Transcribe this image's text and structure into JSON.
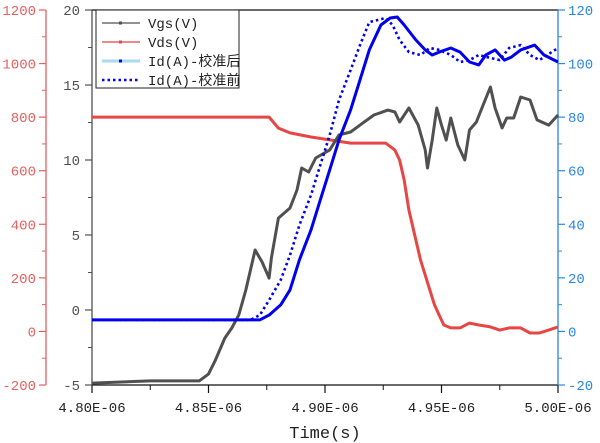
{
  "chart_data": {
    "type": "line",
    "title": "",
    "xlabel": "Time(s)",
    "xlim": [
      4.8e-06,
      5e-06
    ],
    "x_ticks": [
      "4.80E-06",
      "4.85E-06",
      "4.90E-06",
      "4.95E-06",
      "5.00E-06"
    ],
    "x_tick_values": [
      4.8e-06,
      4.85e-06,
      4.9e-06,
      4.95e-06,
      5e-06
    ],
    "grid": false,
    "legend_position": "top-left",
    "axes": {
      "vgs": {
        "side": "left-inner",
        "ylim": [
          -5,
          20
        ],
        "ticks": [
          "-5",
          "0",
          "5",
          "10",
          "15",
          "20"
        ],
        "tick_values": [
          -5,
          0,
          5,
          10,
          15,
          20
        ],
        "color": "#505050"
      },
      "vds": {
        "side": "left-outer",
        "ylim": [
          -200,
          1200
        ],
        "ticks": [
          "-200",
          "0",
          "200",
          "400",
          "600",
          "800",
          "1000",
          "1200"
        ],
        "tick_values": [
          -200,
          0,
          200,
          400,
          600,
          800,
          1000,
          1200
        ],
        "color": "#e8605f"
      },
      "id": {
        "side": "right",
        "ylim": [
          -20,
          120
        ],
        "ticks": [
          "-20",
          "0",
          "20",
          "40",
          "60",
          "80",
          "100",
          "120"
        ],
        "tick_values": [
          -20,
          0,
          20,
          40,
          60,
          80,
          100,
          120
        ],
        "color": "#2a86e8"
      }
    },
    "series": [
      {
        "name": "Vgs(V)",
        "axis": "vgs",
        "color": "#505050",
        "style": "line-square-markers",
        "x": [
          4.8e-06,
          4.825e-06,
          4.846e-06,
          4.85e-06,
          4.853e-06,
          4.857e-06,
          4.86e-06,
          4.863e-06,
          4.866e-06,
          4.87e-06,
          4.873e-06,
          4.876e-06,
          4.877e-06,
          4.88e-06,
          4.885e-06,
          4.888e-06,
          4.89e-06,
          4.893e-06,
          4.896e-06,
          4.902e-06,
          4.906e-06,
          4.911e-06,
          4.915e-06,
          4.921e-06,
          4.927e-06,
          4.93e-06,
          4.932e-06,
          4.936e-06,
          4.94e-06,
          4.943e-06,
          4.944e-06,
          4.946e-06,
          4.948e-06,
          4.95e-06,
          4.952e-06,
          4.954e-06,
          4.957e-06,
          4.96e-06,
          4.962e-06,
          4.965e-06,
          4.967e-06,
          4.971e-06,
          4.973e-06,
          4.976e-06,
          4.978e-06,
          4.981e-06,
          4.984e-06,
          4.988e-06,
          4.991e-06,
          4.996e-06,
          5e-06
        ],
        "y": [
          -4.87,
          -4.73,
          -4.73,
          -4.27,
          -3.33,
          -1.87,
          -1.2,
          -0.33,
          1.33,
          4.0,
          3.2,
          2.13,
          3.47,
          6.13,
          6.8,
          8.0,
          9.47,
          9.2,
          10.13,
          10.67,
          11.67,
          11.87,
          12.33,
          13.0,
          13.33,
          13.2,
          12.53,
          13.47,
          12.33,
          10.67,
          9.47,
          11.33,
          13.47,
          12.33,
          11.33,
          12.8,
          11.0,
          10.0,
          12.0,
          12.53,
          13.33,
          14.87,
          13.47,
          12.13,
          12.8,
          12.8,
          14.2,
          14.0,
          12.67,
          12.33,
          13.0
        ]
      },
      {
        "name": "Vds(V)",
        "axis": "vds",
        "color": "#e84545",
        "style": "line-square-markers",
        "x": [
          4.8e-06,
          4.876e-06,
          4.88e-06,
          4.885e-06,
          4.894e-06,
          4.902e-06,
          4.911e-06,
          4.926e-06,
          4.93e-06,
          4.932e-06,
          4.934e-06,
          4.936e-06,
          4.939e-06,
          4.941e-06,
          4.943e-06,
          4.945e-06,
          4.947e-06,
          4.949e-06,
          4.951e-06,
          4.954e-06,
          4.958e-06,
          4.962e-06,
          4.966e-06,
          4.971e-06,
          4.975e-06,
          4.979e-06,
          4.984e-06,
          4.988e-06,
          4.992e-06,
          4.996e-06,
          5e-06
        ],
        "y": [
          800,
          800,
          759,
          741,
          726,
          715,
          703,
          703,
          677,
          640,
          565,
          453,
          341,
          267,
          211,
          155,
          99,
          61,
          24,
          13,
          13,
          31,
          24,
          17,
          5,
          13,
          13,
          -6,
          -6,
          5,
          17
        ]
      },
      {
        "name": "Id(A)-校准后",
        "axis": "id",
        "color": "#0000ee",
        "legend_line_color": "#a8daf2",
        "style": "line-square-markers",
        "x": [
          4.8e-06,
          4.872e-06,
          4.876e-06,
          4.881e-06,
          4.885e-06,
          4.889e-06,
          4.894e-06,
          4.898e-06,
          4.902e-06,
          4.906e-06,
          4.911e-06,
          4.915e-06,
          4.919e-06,
          4.924e-06,
          4.928e-06,
          4.931e-06,
          4.934e-06,
          4.939e-06,
          4.943e-06,
          4.946e-06,
          4.949e-06,
          4.954e-06,
          4.958e-06,
          4.962e-06,
          4.966e-06,
          4.969e-06,
          4.973e-06,
          4.977e-06,
          4.98e-06,
          4.984e-06,
          4.99e-06,
          4.994e-06,
          5e-06
        ],
        "y": [
          4.3,
          4.3,
          6.1,
          9.9,
          15.5,
          26.7,
          37.9,
          49.1,
          60.3,
          71.5,
          82.7,
          93.9,
          105.1,
          114.4,
          117.0,
          117.4,
          114.4,
          108.8,
          105.1,
          103.2,
          104.3,
          105.8,
          104.3,
          100.6,
          99.5,
          103.2,
          105.1,
          101.3,
          102.4,
          105.1,
          106.9,
          103.2,
          100.6
        ]
      },
      {
        "name": "Id(A)-校准前",
        "axis": "id",
        "color": "#0000ee",
        "style": "dotted",
        "x": [
          4.8e-06,
          4.868e-06,
          4.872e-06,
          4.876e-06,
          4.881e-06,
          4.885e-06,
          4.889e-06,
          4.894e-06,
          4.898e-06,
          4.902e-06,
          4.906e-06,
          4.911e-06,
          4.915e-06,
          4.919e-06,
          4.926e-06,
          4.929e-06,
          4.932e-06,
          4.936e-06,
          4.941e-06,
          4.945e-06,
          4.949e-06,
          4.954e-06,
          4.958e-06,
          4.962e-06,
          4.966e-06,
          4.971e-06,
          4.975e-06,
          4.979e-06,
          4.984e-06,
          4.988e-06,
          4.992e-06,
          5e-06
        ],
        "y": [
          4.3,
          4.3,
          6.1,
          11.7,
          19.2,
          28.5,
          39.7,
          50.9,
          62.1,
          73.3,
          86.4,
          97.6,
          106.9,
          115.5,
          117.0,
          114.4,
          108.8,
          104.3,
          103.2,
          105.8,
          105.1,
          103.2,
          100.6,
          101.3,
          103.2,
          102.1,
          101.3,
          105.8,
          106.9,
          103.2,
          101.3,
          105.8
        ]
      }
    ]
  }
}
